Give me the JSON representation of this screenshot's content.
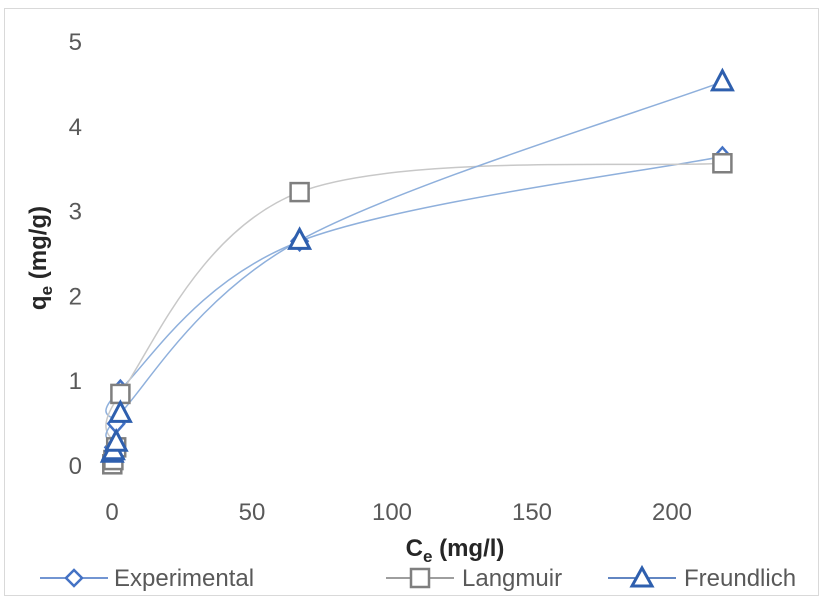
{
  "chart_data": {
    "type": "scatter",
    "xlabel": "Ce (mg/l)",
    "xlabel_main": "C",
    "xlabel_sub": "e",
    "xlabel_unit": " (mg/l)",
    "ylabel": "qe (mg/g)",
    "ylabel_main": "q",
    "ylabel_sub": "e",
    "ylabel_unit": " (mg/g)",
    "xlim": [
      0,
      250
    ],
    "ylim": [
      0,
      5
    ],
    "x_ticks": [
      "0",
      "50",
      "100",
      "150",
      "200"
    ],
    "y_ticks": [
      "0",
      "1",
      "2",
      "3",
      "4",
      "5"
    ],
    "grid": false,
    "legend_position": "bottom",
    "series": [
      {
        "name": "Experimental",
        "marker": "diamond",
        "color": "#4472c4",
        "x": [
          0.1,
          0.5,
          1.5,
          3,
          67,
          218
        ],
        "y": [
          0.12,
          0.22,
          0.5,
          0.9,
          2.65,
          3.65
        ]
      },
      {
        "name": "Langmuir",
        "marker": "square",
        "color": "#7f7f7f",
        "x": [
          0.1,
          0.5,
          1.5,
          3,
          67,
          218
        ],
        "y": [
          0.02,
          0.07,
          0.22,
          0.85,
          3.23,
          3.57
        ]
      },
      {
        "name": "Freundlich",
        "marker": "triangle",
        "color": "#2e5fae",
        "x": [
          0.1,
          0.5,
          1.5,
          3,
          67,
          218
        ],
        "y": [
          0.15,
          0.18,
          0.28,
          0.62,
          2.66,
          4.53
        ]
      }
    ]
  }
}
